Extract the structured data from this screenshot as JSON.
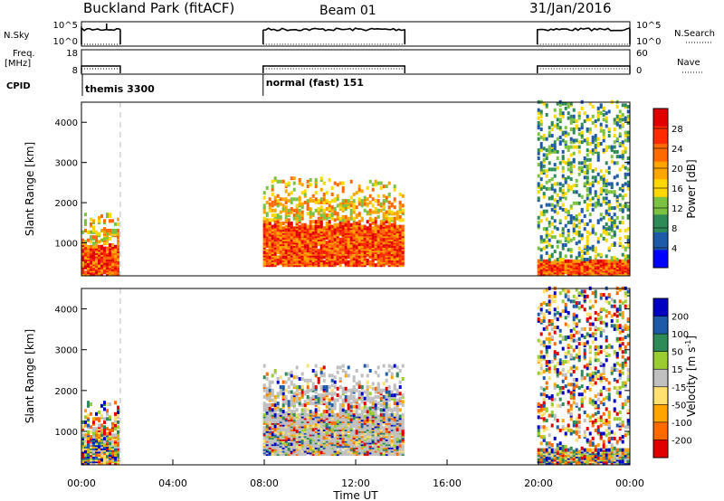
{
  "header": {
    "station": "Buckland Park (fitACF)",
    "beam": "Beam 01",
    "date": "31/Jan/2016"
  },
  "colors": {
    "power_scale": [
      "#0000ff",
      "#1e5aa8",
      "#2e8b57",
      "#7cc242",
      "#ffd800",
      "#ffa500",
      "#ff6a00",
      "#ff2a00",
      "#e00000"
    ],
    "velocity_scale": [
      "#e00000",
      "#ff6a00",
      "#ffa500",
      "#ffe070",
      "#c0c0c0",
      "#9acd32",
      "#2e8b57",
      "#1e5aa8",
      "#0000c0"
    ]
  },
  "chart_data": [
    {
      "type": "line",
      "panel": "nsky-nsearch",
      "left_label": "N.Sky",
      "right_label": "N.Search",
      "left_ticks": [
        "10^5",
        "10^0"
      ],
      "right_ticks": [
        "10^5",
        "10^0"
      ],
      "segments": [
        {
          "start": 0.0,
          "end": 1.7
        },
        {
          "start": 7.95,
          "end": 14.15
        },
        {
          "start": 19.95,
          "end": 24.0
        }
      ]
    },
    {
      "type": "line",
      "panel": "freq-nave",
      "left_label": "Freq.\n[MHz]",
      "right_label": "Nave",
      "left_ticks": [
        "18",
        "8"
      ],
      "right_ticks": [
        "60",
        "0"
      ],
      "segments": [
        {
          "start": 0.0,
          "end": 1.7
        },
        {
          "start": 7.95,
          "end": 14.15
        },
        {
          "start": 19.95,
          "end": 24.0
        }
      ]
    },
    {
      "type": "table",
      "panel": "cpid",
      "label": "CPID",
      "entries": [
        {
          "start": 0.0,
          "text": "themis 3300"
        },
        {
          "start": 7.95,
          "text": "normal (fast) 151"
        }
      ]
    },
    {
      "type": "heatmap",
      "panel": "power",
      "ylabel": "Slant Range [km]",
      "ylim": [
        180,
        4500
      ],
      "yticks": [
        1000,
        2000,
        3000,
        4000
      ],
      "xlim": [
        0,
        24
      ],
      "colorbar_label": "Power [dB]",
      "colorbar_ticks": [
        "28",
        "24",
        "20",
        "16",
        "12",
        "8",
        "4"
      ],
      "coverage": [
        {
          "start": 0.0,
          "end": 1.7,
          "range": [
            180,
            1700
          ],
          "dominant": "orange-red"
        },
        {
          "start": 7.95,
          "end": 14.15,
          "range": [
            400,
            2600
          ],
          "dominant": "orange-yellow"
        },
        {
          "start": 19.95,
          "end": 24.0,
          "range": [
            180,
            4500
          ],
          "dominant": "green-blue"
        }
      ]
    },
    {
      "type": "heatmap",
      "panel": "velocity",
      "ylabel": "Slant Range [km]",
      "ylim": [
        180,
        4500
      ],
      "yticks": [
        1000,
        2000,
        3000,
        4000
      ],
      "xlim": [
        0,
        24
      ],
      "xticks": [
        "00:00",
        "04:00",
        "08:00",
        "12:00",
        "16:00",
        "20:00",
        "00:00"
      ],
      "xlabel": "Time UT",
      "colorbar_label": "Velocity [m s-1]",
      "colorbar_ticks": [
        "200",
        "100",
        "50",
        "15",
        "-15",
        "-50",
        "-100",
        "-200"
      ],
      "coverage": [
        {
          "start": 0.0,
          "end": 1.7,
          "range": [
            180,
            1700
          ],
          "dominant": "mixed"
        },
        {
          "start": 7.95,
          "end": 14.15,
          "range": [
            400,
            2600
          ],
          "dominant": "grey-mixed"
        },
        {
          "start": 19.95,
          "end": 24.0,
          "range": [
            180,
            4500
          ],
          "dominant": "mixed"
        }
      ]
    }
  ]
}
